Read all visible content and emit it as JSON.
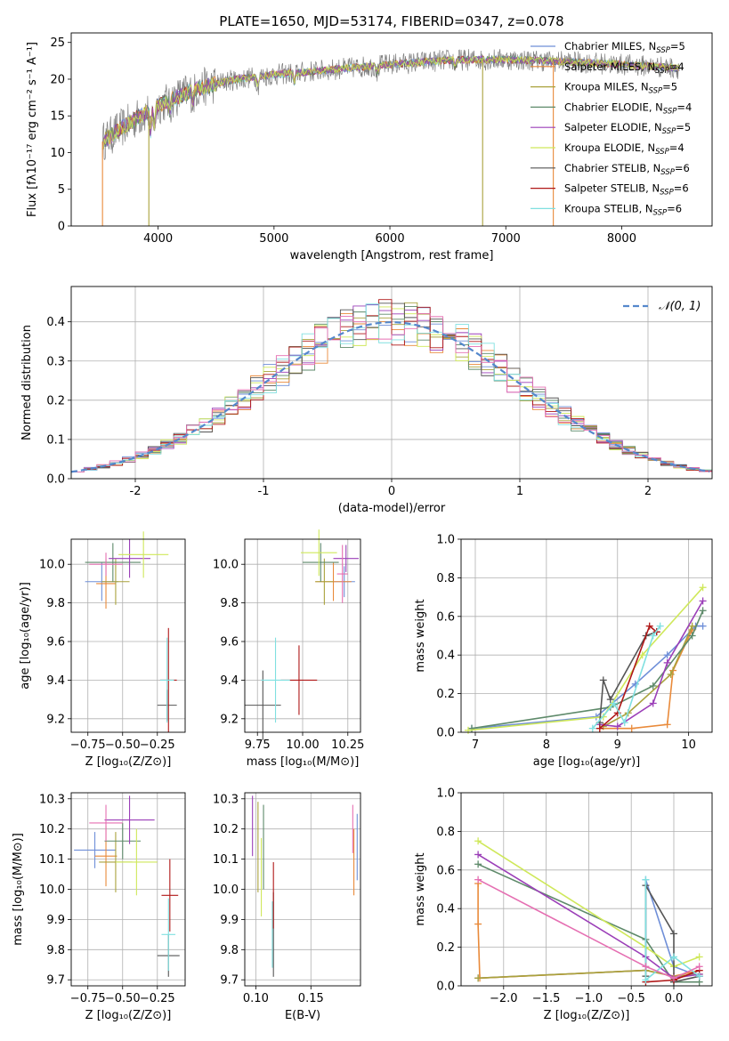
{
  "chart_data": [
    {
      "id": "spectrum",
      "type": "line",
      "title": "PLATE=1650, MJD=53174, FIBERID=0347, z=0.078",
      "xlabel": "wavelength [Angstrom, rest frame]",
      "ylabel": "Flux [fλ10⁻¹⁷ erg cm⁻² s⁻¹ A⁻¹]",
      "xlim": [
        3250,
        8780
      ],
      "ylim": [
        0,
        26.3
      ],
      "xticks": [
        4000,
        5000,
        6000,
        7000,
        8000
      ],
      "yticks": [
        0,
        5,
        10,
        15,
        20,
        25
      ],
      "grid": false,
      "legend_position": "right",
      "models": [
        {
          "name": "Chabrier MILES, N",
          "sub": "SSP",
          "n": "=5",
          "color": "#6f8fd8"
        },
        {
          "name": "Salpeter MILES, N",
          "sub": "SSP",
          "n": "=4",
          "color": "#e98a3a"
        },
        {
          "name": "Kroupa MILES, N",
          "sub": "SSP",
          "n": "=5",
          "color": "#a9a23c"
        },
        {
          "name": "Chabrier ELODIE, N",
          "sub": "SSP",
          "n": "=4",
          "color": "#5e8a6a"
        },
        {
          "name": "Salpeter ELODIE, N",
          "sub": "SSP",
          "n": "=5",
          "color": "#9b3fb8"
        },
        {
          "name": "Kroupa ELODIE, N",
          "sub": "SSP",
          "n": "=4",
          "color": "#cfe85a"
        },
        {
          "name": "Chabrier STELIB, N",
          "sub": "SSP",
          "n": "=6",
          "color": "#555555"
        },
        {
          "name": "Salpeter STELIB, N",
          "sub": "SSP",
          "n": "=6",
          "color": "#b01818"
        },
        {
          "name": "Kroupa STELIB, N",
          "sub": "SSP",
          "n": "=6",
          "color": "#80e0e0"
        }
      ],
      "data_color": "#808080",
      "spectrum_trend": [
        [
          3520,
          11.5
        ],
        [
          3700,
          13.5
        ],
        [
          4000,
          16.5
        ],
        [
          4300,
          18.5
        ],
        [
          4600,
          19.8
        ],
        [
          5000,
          20.6
        ],
        [
          5500,
          21.3
        ],
        [
          6000,
          22.0
        ],
        [
          6500,
          22.6
        ],
        [
          7000,
          22.7
        ],
        [
          7500,
          22.4
        ],
        [
          8000,
          22.0
        ],
        [
          8500,
          21.5
        ]
      ]
    },
    {
      "id": "residuals",
      "type": "histogram",
      "xlabel": "(data-model)/error",
      "ylabel": "Normed distribution",
      "xlim": [
        -2.5,
        2.5
      ],
      "ylim": [
        0,
        0.49
      ],
      "xticks": [
        -2,
        -1,
        0,
        1,
        2
      ],
      "yticks": [
        0.0,
        0.1,
        0.2,
        0.3,
        0.4
      ],
      "grid": true,
      "legend": "𝒩(0, 1)",
      "legend_position": "top-right",
      "bin_width": 0.1,
      "curve_color": "#5588cc"
    },
    {
      "id": "age_vs_Z",
      "type": "errorbar",
      "xlabel": "Z [log₁₀(Z/Z⊙)]",
      "ylabel": "age  [log₁₀(age/yr)]",
      "xlim": [
        -0.87,
        -0.05
      ],
      "ylim": [
        9.13,
        10.13
      ],
      "xticks": [
        -0.75,
        -0.5,
        -0.25
      ],
      "xticklabels": [
        "−0.75",
        "−0.50",
        "−0.25"
      ],
      "yticks": [
        9.2,
        9.4,
        9.6,
        9.8,
        10.0
      ],
      "grid": true,
      "points": [
        {
          "x": -0.65,
          "y": 9.91,
          "xerr": 0.12,
          "yerr": 0.1,
          "color": "#6f8fd8"
        },
        {
          "x": -0.62,
          "y": 9.9,
          "xerr": 0.07,
          "yerr": 0.13,
          "color": "#e98a3a"
        },
        {
          "x": -0.55,
          "y": 9.91,
          "xerr": 0.1,
          "yerr": 0.12,
          "color": "#a9a23c"
        },
        {
          "x": -0.57,
          "y": 10.01,
          "xerr": 0.2,
          "yerr": 0.1,
          "color": "#5e8a6a"
        },
        {
          "x": -0.45,
          "y": 10.03,
          "xerr": 0.15,
          "yerr": 0.1,
          "color": "#9b3fb8"
        },
        {
          "x": -0.35,
          "y": 10.05,
          "xerr": 0.18,
          "yerr": 0.12,
          "color": "#cfe85a"
        },
        {
          "x": -0.62,
          "y": 10.0,
          "xerr": 0.12,
          "yerr": 0.06,
          "color": "#e56fb2"
        },
        {
          "x": -0.18,
          "y": 9.27,
          "xerr": 0.07,
          "yerr": 0.08,
          "color": "#555555"
        },
        {
          "x": -0.17,
          "y": 9.4,
          "xerr": 0.06,
          "yerr": 0.27,
          "color": "#b01818"
        },
        {
          "x": -0.18,
          "y": 9.4,
          "xerr": 0.05,
          "yerr": 0.22,
          "color": "#80e0e0"
        }
      ]
    },
    {
      "id": "age_vs_mass",
      "type": "errorbar",
      "xlabel": "mass [log₁₀(M/M⊙)]",
      "xlim": [
        9.68,
        10.32
      ],
      "ylim": [
        9.13,
        10.13
      ],
      "xticks": [
        9.75,
        10.0,
        10.25
      ],
      "xticklabels": [
        "9.75",
        "10.00",
        "10.25"
      ],
      "yticks": [
        9.2,
        9.4,
        9.6,
        9.8,
        10.0
      ],
      "grid": true,
      "points": [
        {
          "x": 10.23,
          "y": 9.91,
          "xerr": 0.06,
          "yerr": 0.08,
          "color": "#6f8fd8"
        },
        {
          "x": 10.17,
          "y": 9.91,
          "xerr": 0.1,
          "yerr": 0.1,
          "color": "#e98a3a"
        },
        {
          "x": 10.12,
          "y": 9.91,
          "xerr": 0.05,
          "yerr": 0.12,
          "color": "#a9a23c"
        },
        {
          "x": 10.1,
          "y": 10.01,
          "xerr": 0.1,
          "yerr": 0.1,
          "color": "#5e8a6a"
        },
        {
          "x": 10.24,
          "y": 10.03,
          "xerr": 0.07,
          "yerr": 0.07,
          "color": "#9b3fb8"
        },
        {
          "x": 10.09,
          "y": 10.06,
          "xerr": 0.1,
          "yerr": 0.12,
          "color": "#cfe85a"
        },
        {
          "x": 10.22,
          "y": 9.95,
          "xerr": 0.03,
          "yerr": 0.15,
          "color": "#e56fb2"
        },
        {
          "x": 9.78,
          "y": 9.27,
          "xerr": 0.1,
          "yerr": 0.18,
          "color": "#555555"
        },
        {
          "x": 9.98,
          "y": 9.4,
          "xerr": 0.1,
          "yerr": 0.18,
          "color": "#b01818"
        },
        {
          "x": 9.85,
          "y": 9.4,
          "xerr": 0.08,
          "yerr": 0.22,
          "color": "#80e0e0"
        }
      ]
    },
    {
      "id": "weight_vs_age",
      "type": "line",
      "xlabel": "age  [log₁₀(age/yr)]",
      "ylabel": "mass weight",
      "xlim": [
        6.8,
        10.33
      ],
      "ylim": [
        0,
        1.0
      ],
      "xticks": [
        7,
        8,
        9,
        10
      ],
      "yticks": [
        0.0,
        0.2,
        0.4,
        0.6,
        0.8,
        1.0
      ],
      "grid": true,
      "series": [
        {
          "color": "#6f8fd8",
          "x": [
            6.95,
            8.7,
            9.25,
            9.7,
            10.1,
            10.2
          ],
          "y": [
            0.02,
            0.08,
            0.25,
            0.4,
            0.55,
            0.55
          ]
        },
        {
          "color": "#e98a3a",
          "x": [
            8.75,
            9.2,
            9.7,
            9.78,
            10.05
          ],
          "y": [
            0.02,
            0.02,
            0.04,
            0.32,
            0.53
          ]
        },
        {
          "color": "#a9a23c",
          "x": [
            8.8,
            9.15,
            9.75,
            10.05
          ],
          "y": [
            0.03,
            0.1,
            0.3,
            0.55
          ]
        },
        {
          "color": "#5e8a6a",
          "x": [
            6.95,
            8.9,
            9.5,
            10.05,
            10.2
          ],
          "y": [
            0.02,
            0.13,
            0.24,
            0.5,
            0.63
          ]
        },
        {
          "color": "#9b3fb8",
          "x": [
            8.75,
            9.0,
            9.5,
            9.7,
            10.2
          ],
          "y": [
            0.04,
            0.03,
            0.15,
            0.36,
            0.68
          ]
        },
        {
          "color": "#cfe85a",
          "x": [
            6.9,
            8.8,
            9.35,
            10.2
          ],
          "y": [
            0.01,
            0.08,
            0.4,
            0.75
          ]
        },
        {
          "color": "#555555",
          "x": [
            8.75,
            8.8,
            8.9,
            9.4,
            9.55
          ],
          "y": [
            0.05,
            0.27,
            0.17,
            0.5,
            0.52
          ]
        },
        {
          "color": "#b01818",
          "x": [
            8.75,
            9.0,
            9.45,
            9.55
          ],
          "y": [
            0.02,
            0.1,
            0.55,
            0.52
          ]
        },
        {
          "color": "#80e0e0",
          "x": [
            8.65,
            8.95,
            9.1,
            9.5,
            9.6
          ],
          "y": [
            0.02,
            0.15,
            0.05,
            0.5,
            0.55
          ]
        }
      ]
    },
    {
      "id": "mass_vs_Z",
      "type": "errorbar",
      "xlabel": "Z [log₁₀(Z/Z⊙)]",
      "ylabel": "mass [log₁₀(M/M⊙)]",
      "xlim": [
        -0.87,
        -0.05
      ],
      "ylim": [
        9.68,
        10.32
      ],
      "xticks": [
        -0.75,
        -0.5,
        -0.25
      ],
      "xticklabels": [
        "−0.75",
        "−0.50",
        "−0.25"
      ],
      "yticks": [
        9.7,
        9.8,
        9.9,
        10.0,
        10.1,
        10.2,
        10.3
      ],
      "grid": true,
      "points": [
        {
          "x": -0.7,
          "y": 10.13,
          "xerr": 0.15,
          "yerr": 0.06,
          "color": "#6f8fd8"
        },
        {
          "x": -0.62,
          "y": 10.11,
          "xerr": 0.08,
          "yerr": 0.1,
          "color": "#e98a3a"
        },
        {
          "x": -0.55,
          "y": 10.09,
          "xerr": 0.12,
          "yerr": 0.1,
          "color": "#a9a23c"
        },
        {
          "x": -0.5,
          "y": 10.16,
          "xerr": 0.13,
          "yerr": 0.06,
          "color": "#5e8a6a"
        },
        {
          "x": -0.45,
          "y": 10.23,
          "xerr": 0.18,
          "yerr": 0.08,
          "color": "#9b3fb8"
        },
        {
          "x": -0.4,
          "y": 10.09,
          "xerr": 0.15,
          "yerr": 0.11,
          "color": "#cfe85a"
        },
        {
          "x": -0.62,
          "y": 10.22,
          "xerr": 0.12,
          "yerr": 0.06,
          "color": "#e56fb2"
        },
        {
          "x": -0.17,
          "y": 9.78,
          "xerr": 0.08,
          "yerr": 0.07,
          "color": "#555555"
        },
        {
          "x": -0.16,
          "y": 9.98,
          "xerr": 0.06,
          "yerr": 0.12,
          "color": "#b01818"
        },
        {
          "x": -0.17,
          "y": 9.85,
          "xerr": 0.05,
          "yerr": 0.12,
          "color": "#80e0e0"
        }
      ]
    },
    {
      "id": "mass_vs_EBV",
      "type": "errorbar",
      "xlabel": "E(B-V)",
      "xlim": [
        0.09,
        0.195
      ],
      "ylim": [
        9.68,
        10.32
      ],
      "xticks": [
        0.1,
        0.15
      ],
      "xticklabels": [
        "0.10",
        "0.15"
      ],
      "yticks": [
        9.7,
        9.8,
        9.9,
        10.0,
        10.1,
        10.2,
        10.3
      ],
      "grid": true,
      "points": [
        {
          "x": 0.192,
          "y": 10.14,
          "xerr": 0,
          "yerr": 0.11,
          "color": "#6f8fd8"
        },
        {
          "x": 0.189,
          "y": 10.09,
          "xerr": 0,
          "yerr": 0.11,
          "color": "#e98a3a"
        },
        {
          "x": 0.102,
          "y": 10.14,
          "xerr": 0,
          "yerr": 0.15,
          "color": "#a9a23c"
        },
        {
          "x": 0.107,
          "y": 10.14,
          "xerr": 0,
          "yerr": 0.14,
          "color": "#5e8a6a"
        },
        {
          "x": 0.097,
          "y": 10.21,
          "xerr": 0,
          "yerr": 0.1,
          "color": "#9b3fb8"
        },
        {
          "x": 0.105,
          "y": 10.04,
          "xerr": 0,
          "yerr": 0.13,
          "color": "#cfe85a"
        },
        {
          "x": 0.188,
          "y": 10.2,
          "xerr": 0,
          "yerr": 0.08,
          "color": "#e56fb2"
        },
        {
          "x": 0.116,
          "y": 9.85,
          "xerr": 0,
          "yerr": 0.14,
          "color": "#555555"
        },
        {
          "x": 0.116,
          "y": 9.98,
          "xerr": 0,
          "yerr": 0.11,
          "color": "#b01818"
        },
        {
          "x": 0.115,
          "y": 9.85,
          "xerr": 0,
          "yerr": 0.11,
          "color": "#80e0e0"
        }
      ]
    },
    {
      "id": "weight_vs_Z",
      "type": "line",
      "xlabel": "Z [log₁₀(Z/Z⊙)]",
      "ylabel": "mass weight",
      "xlim": [
        -2.5,
        0.45
      ],
      "ylim": [
        0,
        1.0
      ],
      "xticks": [
        -2.0,
        -1.5,
        -1.0,
        -0.5,
        0.0
      ],
      "xticklabels": [
        "−2.0",
        "−1.5",
        "−1.0",
        "−0.5",
        "0.0"
      ],
      "yticks": [
        0.0,
        0.2,
        0.4,
        0.6,
        0.8,
        1.0
      ],
      "grid": true,
      "series": [
        {
          "color": "#6f8fd8",
          "x": [
            -2.3,
            -0.33,
            -0.33,
            0.0,
            0.3
          ],
          "y": [
            0.04,
            0.08,
            0.55,
            0.1,
            0.05
          ]
        },
        {
          "color": "#e98a3a",
          "x": [
            -2.3,
            -2.3,
            -2.28,
            -0.33,
            0.0,
            0.3
          ],
          "y": [
            0.53,
            0.32,
            0.04,
            0.08,
            0.05,
            0.08
          ]
        },
        {
          "color": "#a9a23c",
          "x": [
            -2.3,
            -0.33,
            0.0,
            0.3
          ],
          "y": [
            0.04,
            0.08,
            0.05,
            0.06
          ]
        },
        {
          "color": "#5e8a6a",
          "x": [
            -2.3,
            -0.33,
            0.0,
            0.3
          ],
          "y": [
            0.63,
            0.24,
            0.02,
            0.02
          ]
        },
        {
          "color": "#9b3fb8",
          "x": [
            -2.3,
            -0.33,
            0.0,
            0.3
          ],
          "y": [
            0.68,
            0.15,
            0.04,
            0.06
          ]
        },
        {
          "color": "#cfe85a",
          "x": [
            -2.3,
            -0.33,
            0.0,
            0.3
          ],
          "y": [
            0.75,
            0.2,
            0.1,
            0.15
          ]
        },
        {
          "color": "#555555",
          "x": [
            -0.33,
            -0.33,
            0.0,
            0.0,
            0.3
          ],
          "y": [
            0.05,
            0.52,
            0.27,
            0.02,
            0.05
          ]
        },
        {
          "color": "#b01818",
          "x": [
            -0.33,
            0.0,
            0.3
          ],
          "y": [
            0.02,
            0.03,
            0.08
          ]
        },
        {
          "color": "#80e0e0",
          "x": [
            -0.33,
            -0.33,
            0.0,
            0.3
          ],
          "y": [
            0.55,
            0.03,
            0.15,
            0.05
          ]
        },
        {
          "color": "#e56fb2",
          "x": [
            -2.3,
            -0.33,
            0.0,
            0.3
          ],
          "y": [
            0.55,
            0.1,
            0.04,
            0.1
          ]
        }
      ]
    }
  ]
}
